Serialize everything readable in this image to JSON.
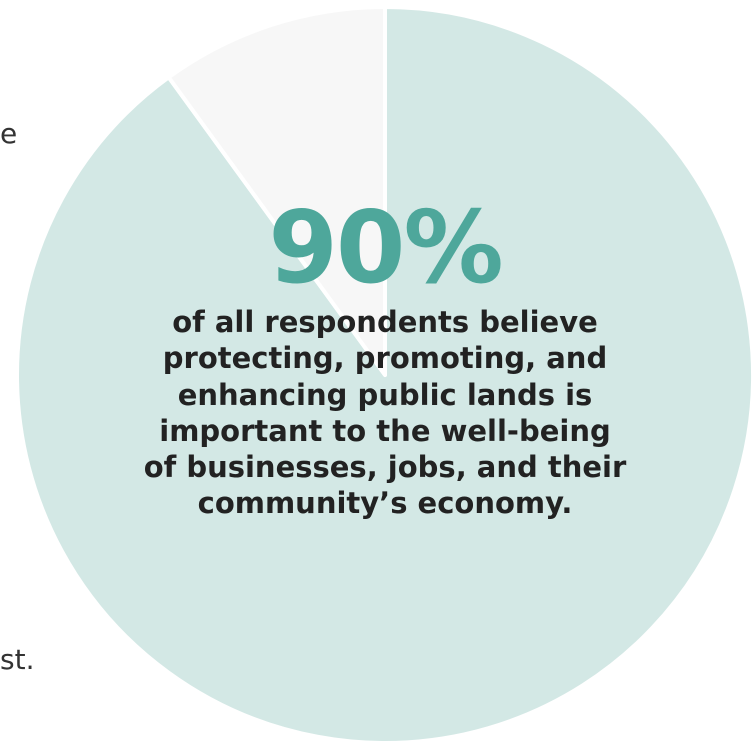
{
  "left_text_fragments": [
    "e",
    "st."
  ],
  "stat": {
    "value_text": "90%",
    "caption_lines": [
      "of all respondents believe",
      "protecting, promoting, and",
      "enhancing public lands is",
      "important to the well-being",
      "of businesses, jobs, and their",
      "community’s economy."
    ]
  },
  "chart_data": {
    "type": "pie",
    "title": "",
    "slices": [
      {
        "value": 90,
        "color": "#d3e8e5"
      },
      {
        "value": 10,
        "color": "#f7f7f7"
      }
    ]
  }
}
